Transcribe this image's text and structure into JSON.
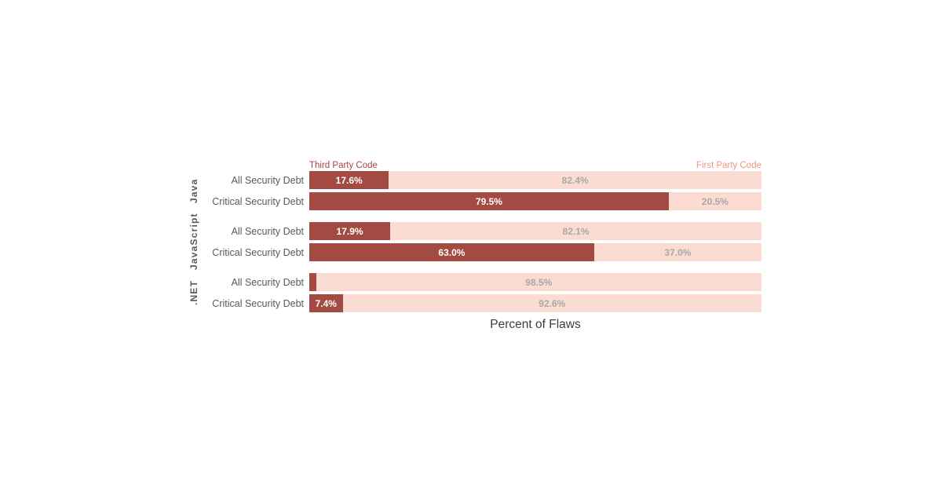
{
  "chart_data": {
    "type": "bar",
    "stacked": true,
    "orientation": "horizontal",
    "title": "",
    "xlabel": "Percent of Flaws",
    "xlim": [
      0,
      100
    ],
    "x_unit": "%",
    "grid": false,
    "legend_position": "top",
    "legend": {
      "third_party": "Third Party Code",
      "first_party": "First Party Code"
    },
    "series": [
      "Third Party Code",
      "First Party Code"
    ],
    "groups": [
      {
        "name": "Java",
        "rows": [
          {
            "label": "All Security Debt",
            "values": {
              "third_party": 17.6,
              "first_party": 82.4
            },
            "labels": {
              "third_party": "17.6%",
              "first_party": "82.4%"
            }
          },
          {
            "label": "Critical Security Debt",
            "values": {
              "third_party": 79.5,
              "first_party": 20.5
            },
            "labels": {
              "third_party": "79.5%",
              "first_party": "20.5%"
            }
          }
        ]
      },
      {
        "name": "JavaScript",
        "rows": [
          {
            "label": "All Security Debt",
            "values": {
              "third_party": 17.9,
              "first_party": 82.1
            },
            "labels": {
              "third_party": "17.9%",
              "first_party": "82.1%"
            }
          },
          {
            "label": "Critical Security Debt",
            "values": {
              "third_party": 63.0,
              "first_party": 37.0
            },
            "labels": {
              "third_party": "63.0%",
              "first_party": "37.0%"
            }
          }
        ]
      },
      {
        "name": ".NET",
        "rows": [
          {
            "label": "All Security Debt",
            "values": {
              "third_party": 1.5,
              "first_party": 98.5
            },
            "labels": {
              "third_party": "",
              "first_party": "98.5%"
            }
          },
          {
            "label": "Critical Security Debt",
            "values": {
              "third_party": 7.4,
              "first_party": 92.6
            },
            "labels": {
              "third_party": "7.4%",
              "first_party": "92.6%"
            }
          }
        ]
      }
    ],
    "colors": {
      "third_party_bar": "#a34a42",
      "first_party_bar": "#fadcd2",
      "third_party_header_text": "#a8453c",
      "first_party_header_text": "#ef9683",
      "value_on_dark": "#ffffff",
      "value_on_light": "#a8a8a8",
      "row_label_text": "#595959",
      "group_label_text": "#595959",
      "axis_title_text": "#3d3d3d"
    }
  }
}
